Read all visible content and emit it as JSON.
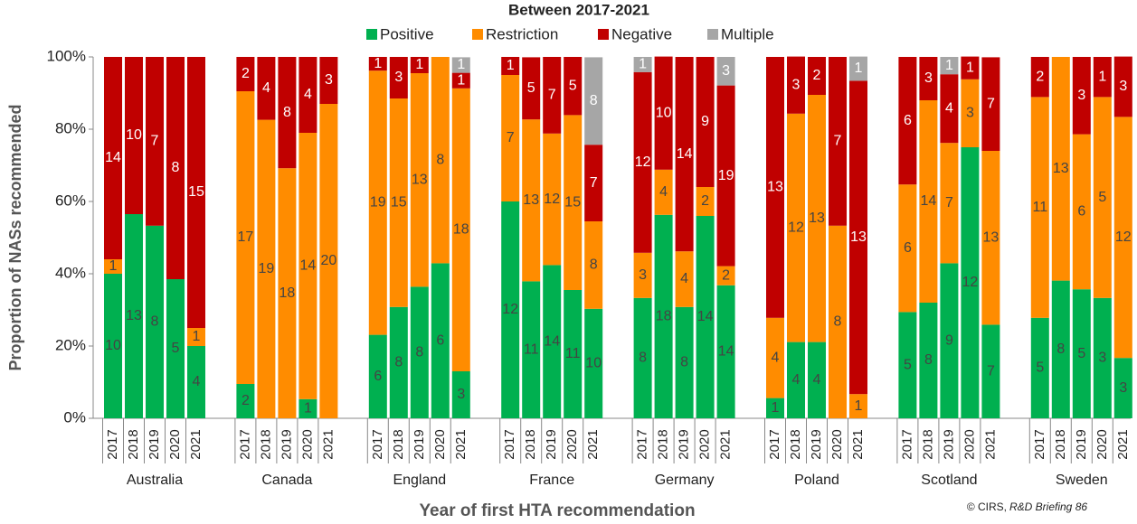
{
  "chart_data": {
    "type": "stacked_bar",
    "title": "Between 2017-2021",
    "x_label": "Year of first HTA recommendation",
    "y_label": "Proportion of NASs recommended",
    "credit": "© CIRS,",
    "credit_italic": "R&D Briefing 86",
    "groups": [
      "Australia",
      "Canada",
      "England",
      "France",
      "Germany",
      "Poland",
      "Scotland",
      "Sweden"
    ],
    "categories": [
      "2017",
      "2018",
      "2019",
      "2020",
      "2021",
      "2017",
      "2018",
      "2019",
      "2020",
      "2021",
      "2017",
      "2018",
      "2019",
      "2020",
      "2021",
      "2017",
      "2018",
      "2019",
      "2020",
      "2021",
      "2017",
      "2018",
      "2019",
      "2020",
      "2021",
      "2017",
      "2018",
      "2019",
      "2020",
      "2021",
      "2017",
      "2018",
      "2019",
      "2020",
      "2021",
      "2017",
      "2018",
      "2019",
      "2020",
      "2021"
    ],
    "ylim": [
      0,
      100
    ],
    "yticks": [
      {
        "value": 0,
        "label": "0%"
      },
      {
        "value": 20,
        "label": "20%"
      },
      {
        "value": 40,
        "label": "40%"
      },
      {
        "value": 60,
        "label": "60%"
      },
      {
        "value": 80,
        "label": "80%"
      },
      {
        "value": 100,
        "label": "100%"
      }
    ],
    "legend": "top",
    "series": [
      {
        "name": "Positive",
        "color": "#00b050",
        "values": [
          40,
          56.5,
          53.3,
          38.5,
          20,
          9.5,
          0,
          0,
          5.3,
          0,
          23.1,
          30.8,
          36.4,
          42.9,
          13,
          60,
          37.9,
          42.4,
          35.5,
          30.3,
          33.3,
          56.3,
          30.8,
          56,
          36.8,
          5.6,
          21.1,
          21.1,
          0,
          0,
          29.4,
          32,
          42.9,
          75,
          25.9,
          27.8,
          38.1,
          35.7,
          33.3,
          16.7
        ],
        "counts": [
          10,
          13,
          8,
          5,
          4,
          2,
          null,
          null,
          1,
          null,
          6,
          8,
          8,
          6,
          3,
          12,
          11,
          14,
          11,
          10,
          8,
          18,
          8,
          14,
          14,
          1,
          4,
          4,
          null,
          null,
          5,
          8,
          9,
          12,
          7,
          5,
          8,
          5,
          3,
          3
        ]
      },
      {
        "name": "Restriction",
        "color": "#ff8c00",
        "values": [
          4,
          0,
          0,
          0,
          5,
          81,
          82.6,
          69.2,
          73.7,
          87,
          73.1,
          57.7,
          59.1,
          57.1,
          78.3,
          35,
          44.8,
          36.4,
          48.4,
          24.2,
          12.5,
          12.5,
          15.4,
          8,
          5.3,
          22.2,
          63.2,
          68.4,
          53.3,
          6.7,
          35.3,
          56,
          33.3,
          18.8,
          48.1,
          61.1,
          61.9,
          42.9,
          55.6,
          66.7
        ],
        "counts": [
          1,
          null,
          null,
          null,
          1,
          17,
          19,
          18,
          14,
          20,
          19,
          15,
          13,
          8,
          18,
          7,
          13,
          12,
          15,
          8,
          3,
          4,
          4,
          2,
          2,
          4,
          12,
          13,
          8,
          1,
          6,
          14,
          7,
          3,
          13,
          11,
          13,
          6,
          5,
          12
        ]
      },
      {
        "name": "Negative",
        "color": "#c00000",
        "values": [
          56,
          43.5,
          46.7,
          61.5,
          75,
          9.5,
          17.4,
          30.8,
          21,
          13,
          3.8,
          11.5,
          4.5,
          0,
          4.3,
          5,
          17.2,
          21.2,
          16.1,
          21.2,
          50,
          31.3,
          53.8,
          36,
          50,
          72.2,
          15.8,
          10.5,
          46.7,
          86.7,
          35.3,
          12,
          19,
          6.3,
          25.9,
          11.1,
          0,
          21.4,
          11.1,
          16.7
        ],
        "counts": [
          14,
          10,
          7,
          8,
          15,
          2,
          4,
          8,
          4,
          3,
          1,
          3,
          1,
          null,
          1,
          1,
          5,
          7,
          5,
          7,
          12,
          10,
          14,
          9,
          19,
          13,
          3,
          2,
          7,
          13,
          6,
          3,
          4,
          1,
          7,
          2,
          null,
          3,
          1,
          3
        ]
      },
      {
        "name": "Multiple",
        "color": "#a6a6a6",
        "values": [
          0,
          0,
          0,
          0,
          0,
          0,
          0,
          0,
          0,
          0,
          0,
          0,
          0,
          0,
          4.3,
          0,
          0,
          0,
          0,
          24.2,
          4.2,
          0,
          0,
          0,
          7.9,
          0,
          0,
          0,
          0,
          6.7,
          0,
          0,
          4.8,
          0,
          0,
          0,
          0,
          0,
          0,
          0
        ],
        "counts": [
          null,
          null,
          null,
          null,
          null,
          null,
          null,
          null,
          null,
          null,
          null,
          null,
          null,
          null,
          1,
          null,
          null,
          null,
          null,
          8,
          1,
          null,
          null,
          null,
          3,
          null,
          null,
          null,
          null,
          1,
          null,
          null,
          1,
          null,
          null,
          null,
          null,
          null,
          null,
          null
        ]
      }
    ]
  }
}
